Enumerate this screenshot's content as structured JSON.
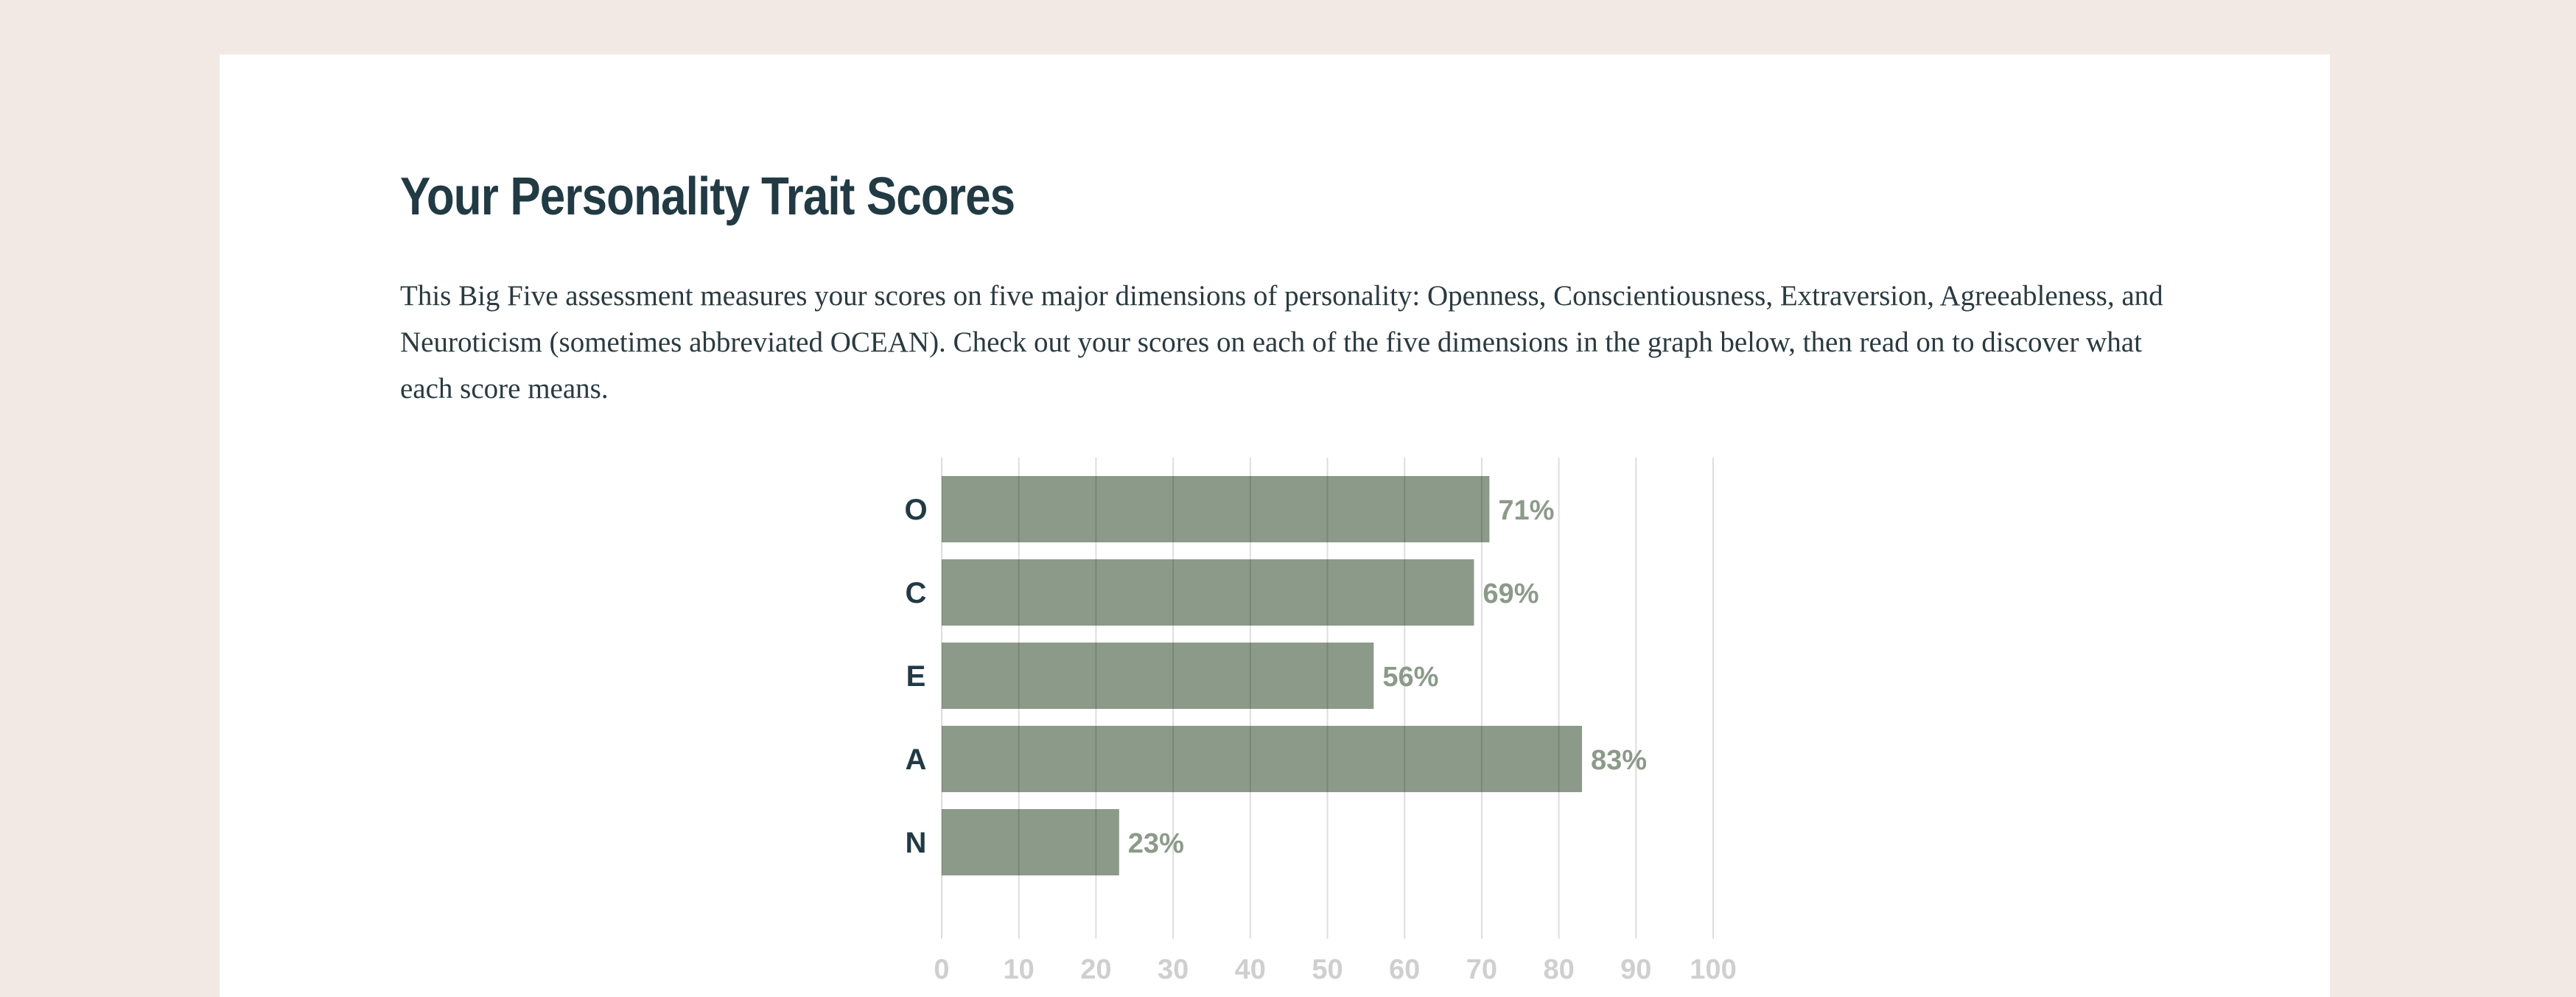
{
  "page": {
    "title": "Your Personality Trait Scores",
    "intro": "This Big Five assessment measures your scores on five major dimensions of personality: Openness, Conscientiousness, Extraversion, Agreeableness, and Neuroticism (sometimes abbreviated OCEAN). Check out your scores on each of the five dimensions in the graph below, then read on to discover what each score means."
  },
  "colors": {
    "page_background": "#f3e9e4",
    "card": "#ffffff",
    "bar": "#8c9a8a",
    "value_label": "#8c9a8a",
    "category_label": "#213a44",
    "grid": "#dcdcdc",
    "tick_label": "#cfcfcf"
  },
  "chart_data": {
    "type": "bar",
    "orientation": "horizontal",
    "categories": [
      "O",
      "C",
      "E",
      "A",
      "N"
    ],
    "values": [
      71,
      69,
      56,
      83,
      23
    ],
    "value_labels": [
      "71%",
      "69%",
      "56%",
      "83%",
      "23%"
    ],
    "xlim": [
      0,
      100
    ],
    "xticks": [
      0,
      10,
      20,
      30,
      40,
      50,
      60,
      70,
      80,
      90,
      100
    ],
    "grid": "vertical",
    "legend": "none"
  }
}
